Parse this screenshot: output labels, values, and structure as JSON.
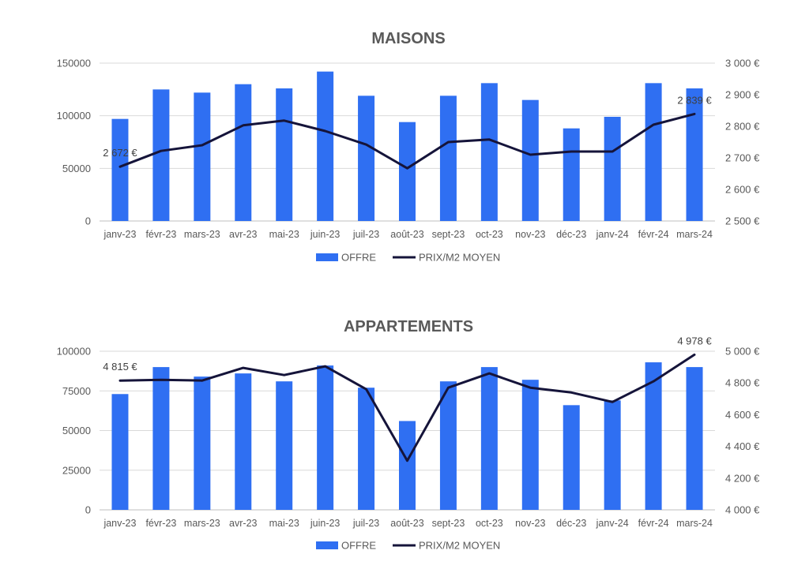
{
  "colors": {
    "bar": "#2F6FF2",
    "line": "#15143A",
    "grid": "#D9D9D9",
    "text": "#595959"
  },
  "chart_data": [
    {
      "type": "bar",
      "title": "MAISONS",
      "categories": [
        "janv-23",
        "févr-23",
        "mars-23",
        "avr-23",
        "mai-23",
        "juin-23",
        "juil-23",
        "août-23",
        "sept-23",
        "oct-23",
        "nov-23",
        "déc-23",
        "janv-24",
        "févr-24",
        "mars-24"
      ],
      "series": [
        {
          "name": "OFFRE",
          "type": "bar",
          "axis": "left",
          "values": [
            97000,
            125000,
            122000,
            130000,
            126000,
            142000,
            119000,
            94000,
            119000,
            131000,
            115000,
            88000,
            99000,
            131000,
            126000
          ]
        },
        {
          "name": "PRIX/M2 MOYEN",
          "type": "line",
          "axis": "right",
          "values": [
            2672,
            2722,
            2740,
            2803,
            2818,
            2785,
            2742,
            2667,
            2750,
            2758,
            2710,
            2720,
            2720,
            2805,
            2839
          ]
        }
      ],
      "ylim_left": [
        0,
        150000
      ],
      "yticks_left": [
        "0",
        "50000",
        "100000",
        "150000"
      ],
      "ylim_right": [
        2500,
        3000
      ],
      "yticks_right": [
        "2 500 €",
        "2 600 €",
        "2 700 €",
        "2 800 €",
        "2 900 €",
        "3 000 €"
      ],
      "data_labels": [
        {
          "index": 0,
          "text": "2 672 €"
        },
        {
          "index": 14,
          "text": "2 839 €"
        }
      ],
      "legend": [
        "OFFRE",
        "PRIX/M2 MOYEN"
      ],
      "legend_position": "bottom",
      "grid": true
    },
    {
      "type": "bar",
      "title": "APPARTEMENTS",
      "categories": [
        "janv-23",
        "févr-23",
        "mars-23",
        "avr-23",
        "mai-23",
        "juin-23",
        "juil-23",
        "août-23",
        "sept-23",
        "oct-23",
        "nov-23",
        "déc-23",
        "janv-24",
        "févr-24",
        "mars-24"
      ],
      "series": [
        {
          "name": "OFFRE",
          "type": "bar",
          "axis": "left",
          "values": [
            73000,
            90000,
            84000,
            86000,
            81000,
            91000,
            77000,
            56000,
            81000,
            90000,
            82000,
            66000,
            69000,
            93000,
            90000
          ]
        },
        {
          "name": "PRIX/M2 MOYEN",
          "type": "line",
          "axis": "right",
          "values": [
            4815,
            4820,
            4815,
            4895,
            4850,
            4905,
            4760,
            4310,
            4770,
            4860,
            4770,
            4740,
            4680,
            4810,
            4978
          ]
        }
      ],
      "ylim_left": [
        0,
        100000
      ],
      "yticks_left": [
        "0",
        "25000",
        "50000",
        "75000",
        "100000"
      ],
      "ylim_right": [
        4000,
        5000
      ],
      "yticks_right": [
        "4 000 €",
        "4 200 €",
        "4 400 €",
        "4 600 €",
        "4 800 €",
        "5 000 €"
      ],
      "data_labels": [
        {
          "index": 0,
          "text": "4 815 €"
        },
        {
          "index": 14,
          "text": "4 978 €"
        }
      ],
      "legend": [
        "OFFRE",
        "PRIX/M2 MOYEN"
      ],
      "legend_position": "bottom",
      "grid": true
    }
  ]
}
